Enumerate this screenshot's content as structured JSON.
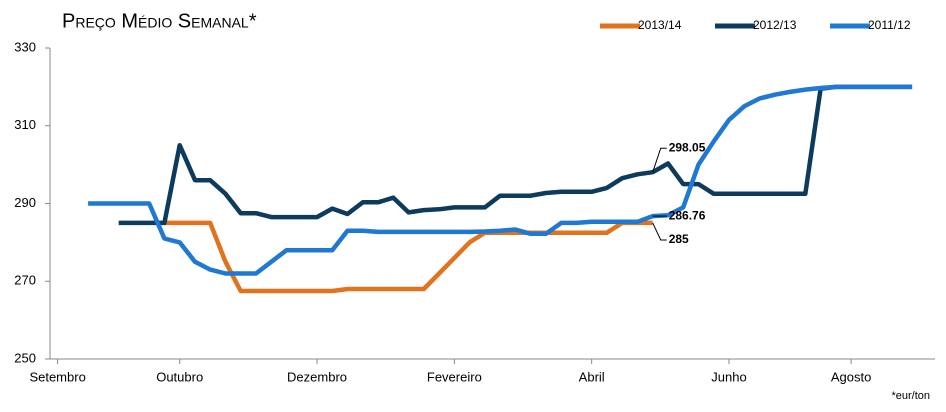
{
  "chart_data": {
    "type": "line",
    "title": "Preço Médio Semanal*",
    "footnote": "*eur/ton",
    "categories": [
      "Setembro",
      null,
      null,
      null,
      null,
      null,
      null,
      null,
      "Outubro",
      null,
      null,
      null,
      null,
      null,
      null,
      null,
      null,
      "Dezembro",
      null,
      null,
      null,
      null,
      null,
      null,
      null,
      null,
      "Fevereiro",
      null,
      null,
      null,
      null,
      null,
      null,
      null,
      null,
      "Abril",
      null,
      null,
      null,
      null,
      null,
      null,
      null,
      null,
      "Junho",
      null,
      null,
      null,
      null,
      null,
      null,
      null,
      "Agosto",
      null,
      null,
      null,
      null,
      null
    ],
    "series": [
      {
        "name": "2013/14",
        "color": "#e2731e",
        "values": [
          null,
          null,
          null,
          null,
          null,
          null,
          null,
          285,
          285,
          285,
          285,
          275,
          267.5,
          267.5,
          267.5,
          267.5,
          267.5,
          267.5,
          267.5,
          268,
          268,
          268,
          268,
          268,
          268,
          272,
          276,
          280,
          282.5,
          282.5,
          282.5,
          282.5,
          282.5,
          282.5,
          282.5,
          282.5,
          282.5,
          285,
          285,
          285,
          null,
          null,
          null,
          null,
          null,
          null,
          null,
          null,
          null,
          null,
          null,
          null,
          null,
          null,
          null,
          null,
          null,
          null
        ]
      },
      {
        "name": "2012/13",
        "color": "#0d3b5e",
        "values": [
          null,
          null,
          null,
          null,
          285,
          285,
          285,
          285,
          305,
          296,
          296,
          292.5,
          287.5,
          287.5,
          286.5,
          286.5,
          286.5,
          286.5,
          288.7,
          287.3,
          290.3,
          290.3,
          291.5,
          287.7,
          288.3,
          288.5,
          289,
          289,
          289,
          292,
          292,
          292,
          292.7,
          293,
          293,
          293,
          294,
          296.5,
          297.5,
          298.05,
          300.3,
          295,
          295,
          292.5,
          292.5,
          292.5,
          292.5,
          292.5,
          292.5,
          292.5,
          319.5,
          320,
          320,
          320,
          320,
          320,
          320,
          null
        ]
      },
      {
        "name": "2011/12",
        "color": "#1f78d1",
        "values": [
          null,
          null,
          290,
          290,
          290,
          290,
          290,
          281,
          280,
          275,
          273,
          272,
          272,
          272,
          275,
          278,
          278,
          278,
          278,
          283,
          283,
          282.7,
          282.7,
          282.7,
          282.7,
          282.7,
          282.7,
          282.7,
          282.8,
          283,
          283.3,
          282.2,
          282.2,
          285,
          285,
          285.3,
          285.3,
          285.3,
          285.3,
          286.76,
          287,
          289,
          300,
          306,
          311.5,
          315,
          317,
          318,
          318.7,
          319.3,
          319.7,
          320,
          320,
          320,
          320,
          320,
          320,
          null
        ]
      }
    ],
    "ylim": [
      250,
      330
    ],
    "yticks": [
      250,
      270,
      290,
      310,
      330
    ],
    "legend": "top-right"
  }
}
